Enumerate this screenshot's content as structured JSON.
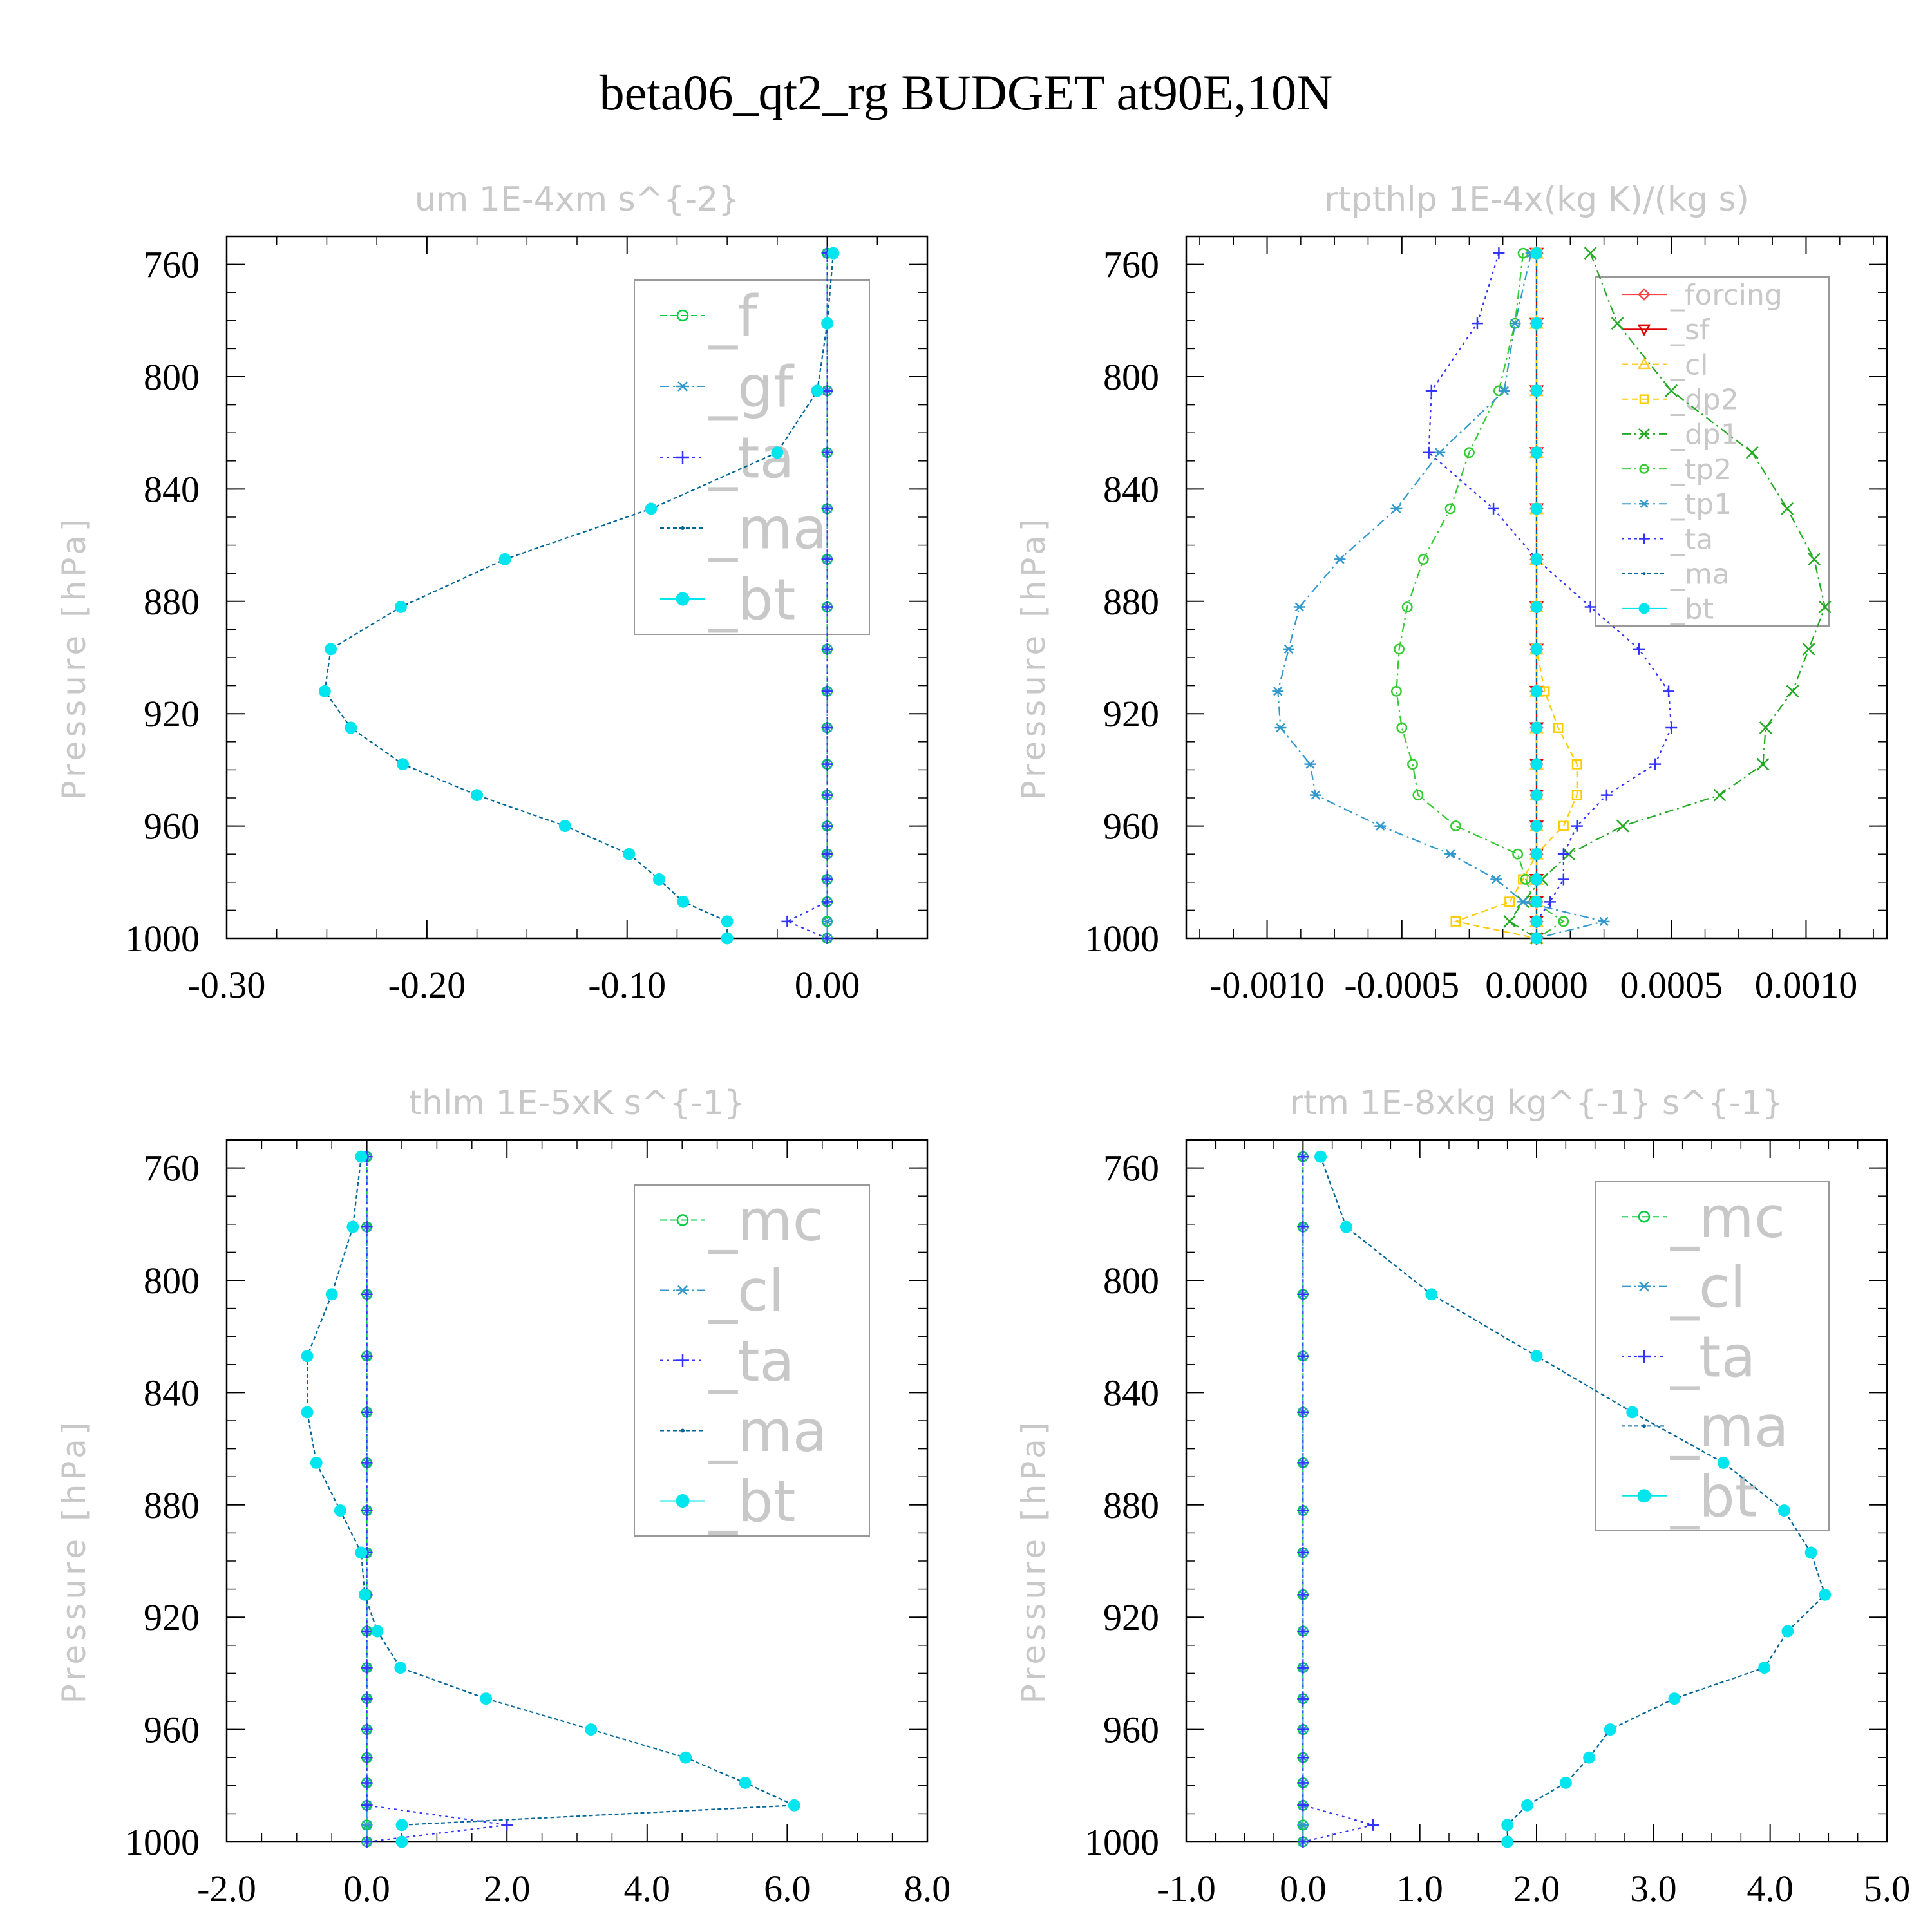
{
  "title": "beta06_qt2_rg  BUDGET at90E,10N",
  "chart_data": [
    {
      "type": "line",
      "title": "um  1E-4xm s^{-2}",
      "ylabel": "Pressure [hPa]",
      "xlim": [
        -0.3,
        0.05
      ],
      "ylim": [
        1000,
        750
      ],
      "xticks": [
        -0.3,
        -0.2,
        -0.1,
        0.0
      ],
      "xtick_labels": [
        "-0.30",
        "-0.20",
        "-0.10",
        "0.00"
      ],
      "yticks": [
        760,
        800,
        840,
        880,
        920,
        960,
        1000
      ],
      "ytick_labels": [
        "760",
        "800",
        "840",
        "880",
        "920",
        "960",
        "1000"
      ],
      "legend_position": "upper-right",
      "legend_font": 88,
      "levels": [
        756,
        781,
        805,
        827,
        847,
        865,
        882,
        897,
        912,
        925,
        938,
        949,
        960,
        970,
        979,
        987,
        994,
        1000
      ],
      "series": [
        {
          "name": "_f",
          "color": "#00cc44",
          "marker": "circle",
          "dash": "10,6",
          "values": [
            0.0,
            0.0,
            0.0,
            0.0,
            0.0,
            0.0,
            0.0,
            0.0,
            0.0,
            0.0,
            0.0,
            0.0,
            0.0,
            0.0,
            0.0,
            0.0,
            0.0,
            0.0
          ]
        },
        {
          "name": "_gf",
          "color": "#3399cc",
          "marker": "star",
          "dash": "14,6,3,6",
          "values": [
            0.0,
            0.0,
            0.0,
            0.0,
            0.0,
            0.0,
            0.0,
            0.0,
            0.0,
            0.0,
            0.0,
            0.0,
            0.0,
            0.0,
            0.0,
            0.0,
            0.0,
            0.0
          ]
        },
        {
          "name": "_ta",
          "color": "#3333ff",
          "marker": "plus",
          "dash": "4,6",
          "values": [
            0.0,
            0.0,
            0.0,
            0.0,
            0.0,
            0.0,
            0.0,
            0.0,
            0.0,
            0.0,
            0.0,
            0.0,
            0.0,
            0.0,
            0.0,
            0.0,
            -0.02,
            0.0
          ]
        },
        {
          "name": "_ma",
          "color": "#006699",
          "marker": "dot",
          "dash": "6,4",
          "values": [
            0.003,
            0.0,
            -0.005,
            -0.025,
            -0.088,
            -0.161,
            -0.213,
            -0.248,
            -0.251,
            -0.238,
            -0.212,
            -0.175,
            -0.131,
            -0.099,
            -0.084,
            -0.072,
            -0.05,
            -0.05
          ]
        },
        {
          "name": "_bt",
          "color": "#00e5ee",
          "marker": "filled",
          "dash": "",
          "values": [
            0.003,
            0.0,
            -0.005,
            -0.025,
            -0.088,
            -0.161,
            -0.213,
            -0.248,
            -0.251,
            -0.238,
            -0.212,
            -0.175,
            -0.131,
            -0.099,
            -0.084,
            -0.072,
            -0.05,
            -0.05
          ]
        }
      ]
    },
    {
      "type": "line",
      "title": "rtpthlp  1E-4x(kg K)/(kg s)",
      "ylabel": "Pressure [hPa]",
      "xlim": [
        -0.0013,
        0.0013
      ],
      "ylim": [
        1000,
        750
      ],
      "xticks": [
        -0.001,
        -0.0005,
        0.0,
        0.0005,
        0.001
      ],
      "xtick_labels": [
        "-0.0010",
        "-0.0005",
        "0.0000",
        "0.0005",
        "0.0010"
      ],
      "yticks": [
        760,
        800,
        840,
        880,
        920,
        960,
        1000
      ],
      "ytick_labels": [
        "760",
        "800",
        "840",
        "880",
        "920",
        "960",
        "1000"
      ],
      "legend_position": "upper-right",
      "legend_font": 44,
      "levels": [
        756,
        781,
        805,
        827,
        847,
        865,
        882,
        897,
        912,
        925,
        938,
        949,
        960,
        970,
        979,
        987,
        994,
        1000
      ],
      "series": [
        {
          "name": "_forcing",
          "color": "#ff4444",
          "marker": "diamond",
          "dash": "",
          "values": [
            0,
            0,
            0,
            0,
            0,
            0,
            0,
            0,
            0,
            0,
            0,
            0,
            0,
            0,
            0,
            0,
            0,
            0
          ]
        },
        {
          "name": "_sf",
          "color": "#dd0000",
          "marker": "triangle-down",
          "dash": "",
          "values": [
            0,
            0,
            0,
            0,
            0,
            0,
            0,
            0,
            0,
            0,
            0,
            0,
            0,
            0,
            0,
            0,
            0,
            0
          ]
        },
        {
          "name": "_cl",
          "color": "#ffcc33",
          "marker": "triangle-up",
          "dash": "10,6",
          "values": [
            0,
            0,
            0,
            0,
            0,
            0,
            0,
            0,
            0,
            0,
            0,
            0,
            0,
            0,
            0,
            0,
            0,
            0
          ]
        },
        {
          "name": "_dp2",
          "color": "#ffcc00",
          "marker": "square",
          "dash": "10,6",
          "values": [
            0,
            0,
            0,
            0,
            0,
            0,
            0,
            0,
            3e-05,
            8e-05,
            0.00015,
            0.00015,
            0.0001,
            0.0,
            -5e-05,
            -0.0001,
            -0.0003,
            0.0
          ]
        },
        {
          "name": "_dp1",
          "color": "#22aa22",
          "marker": "x",
          "dash": "14,6,3,6",
          "values": [
            0.0002,
            0.0003,
            0.0005,
            0.0008,
            0.00093,
            0.00103,
            0.00107,
            0.00101,
            0.00095,
            0.00085,
            0.00084,
            0.00068,
            0.00032,
            0.00012,
            2e-05,
            -5e-05,
            -0.0001,
            0.0
          ]
        },
        {
          "name": "_tp2",
          "color": "#33cc33",
          "marker": "circle",
          "dash": "14,6,3,6",
          "values": [
            -5e-05,
            -8e-05,
            -0.00014,
            -0.00025,
            -0.00032,
            -0.00042,
            -0.00048,
            -0.00051,
            -0.00052,
            -0.0005,
            -0.00046,
            -0.00044,
            -0.0003,
            -7e-05,
            -4e-05,
            -1e-05,
            0.0001,
            0.0
          ]
        },
        {
          "name": "_tp1",
          "color": "#3399cc",
          "marker": "star",
          "dash": "14,6,3,6",
          "values": [
            -2e-05,
            -8e-05,
            -0.00012,
            -0.00036,
            -0.00052,
            -0.00073,
            -0.00088,
            -0.00092,
            -0.00096,
            -0.00095,
            -0.00084,
            -0.00082,
            -0.00058,
            -0.00032,
            -0.00015,
            -5e-05,
            0.00025,
            0.0
          ]
        },
        {
          "name": "_ta",
          "color": "#3333ff",
          "marker": "plus",
          "dash": "4,6",
          "values": [
            -0.00014,
            -0.00022,
            -0.00039,
            -0.0004,
            -0.00016,
            0.0,
            0.0002,
            0.00038,
            0.00049,
            0.0005,
            0.00044,
            0.00026,
            0.00015,
            0.0001,
            0.0001,
            5e-05,
            0.0,
            0.0
          ]
        },
        {
          "name": "_ma",
          "color": "#006699",
          "marker": "dot",
          "dash": "6,4",
          "values": [
            0,
            0,
            0,
            0,
            0,
            0,
            0,
            0,
            0,
            0,
            0,
            0,
            0,
            0,
            0,
            0,
            0,
            0
          ]
        },
        {
          "name": "_bt",
          "color": "#00e5ee",
          "marker": "filled",
          "dash": "",
          "values": [
            0,
            0,
            0,
            0,
            0,
            0,
            0,
            0,
            0,
            0,
            0,
            0,
            0,
            0,
            0,
            0,
            0,
            0
          ]
        }
      ]
    },
    {
      "type": "line",
      "title": "thlm  1E-5xK s^{-1}",
      "ylabel": "Pressure [hPa]",
      "xlim": [
        -2.0,
        8.0
      ],
      "ylim": [
        1000,
        750
      ],
      "xticks": [
        -2,
        0,
        2,
        4,
        6,
        8
      ],
      "xtick_labels": [
        "-2.0",
        "0.0",
        "2.0",
        "4.0",
        "6.0",
        "8.0"
      ],
      "yticks": [
        760,
        800,
        840,
        880,
        920,
        960,
        1000
      ],
      "ytick_labels": [
        "760",
        "800",
        "840",
        "880",
        "920",
        "960",
        "1000"
      ],
      "legend_position": "upper-right",
      "legend_font": 88,
      "levels": [
        756,
        781,
        805,
        827,
        847,
        865,
        882,
        897,
        912,
        925,
        938,
        949,
        960,
        970,
        979,
        987,
        994,
        1000
      ],
      "series": [
        {
          "name": "_mc",
          "color": "#00cc44",
          "marker": "circle",
          "dash": "10,6",
          "values": [
            0,
            0,
            0,
            0,
            0,
            0,
            0,
            0,
            0,
            0,
            0,
            0,
            0,
            0,
            0,
            0,
            0,
            0
          ]
        },
        {
          "name": "_cl",
          "color": "#3399cc",
          "marker": "star",
          "dash": "14,6,3,6",
          "values": [
            0,
            0,
            0,
            0,
            0,
            0,
            0,
            0,
            0,
            0,
            0,
            0,
            0,
            0,
            0,
            0,
            0,
            0
          ]
        },
        {
          "name": "_ta",
          "color": "#3333ff",
          "marker": "plus",
          "dash": "4,6",
          "values": [
            0,
            0,
            0,
            0,
            0,
            0,
            0,
            0,
            0,
            0,
            0,
            0,
            0,
            0,
            0,
            0,
            2.0,
            0.0
          ]
        },
        {
          "name": "_ma",
          "color": "#006699",
          "marker": "dot",
          "dash": "6,4",
          "values": [
            -0.08,
            -0.2,
            -0.5,
            -0.85,
            -0.85,
            -0.72,
            -0.38,
            -0.08,
            -0.03,
            0.15,
            0.48,
            1.7,
            3.2,
            4.55,
            5.4,
            6.1,
            0.5,
            0.5
          ]
        },
        {
          "name": "_bt",
          "color": "#00e5ee",
          "marker": "filled",
          "dash": "",
          "values": [
            -0.08,
            -0.2,
            -0.5,
            -0.85,
            -0.85,
            -0.72,
            -0.38,
            -0.08,
            -0.03,
            0.15,
            0.48,
            1.7,
            3.2,
            4.55,
            5.4,
            6.1,
            0.5,
            0.5
          ]
        }
      ]
    },
    {
      "type": "line",
      "title": "rtm  1E-8xkg kg^{-1} s^{-1}",
      "ylabel": "Pressure [hPa]",
      "xlim": [
        -1.0,
        5.0
      ],
      "ylim": [
        1000,
        750
      ],
      "xticks": [
        -1,
        0,
        1,
        2,
        3,
        4,
        5
      ],
      "xtick_labels": [
        "-1.0",
        "0.0",
        "1.0",
        "2.0",
        "3.0",
        "4.0",
        "5.0"
      ],
      "yticks": [
        760,
        800,
        840,
        880,
        920,
        960,
        1000
      ],
      "ytick_labels": [
        "760",
        "800",
        "840",
        "880",
        "920",
        "960",
        "1000"
      ],
      "legend_position": "upper-right",
      "legend_font": 88,
      "levels": [
        756,
        781,
        805,
        827,
        847,
        865,
        882,
        897,
        912,
        925,
        938,
        949,
        960,
        970,
        979,
        987,
        994,
        1000
      ],
      "series": [
        {
          "name": "_mc",
          "color": "#00cc44",
          "marker": "circle",
          "dash": "10,6",
          "values": [
            0,
            0,
            0,
            0,
            0,
            0,
            0,
            0,
            0,
            0,
            0,
            0,
            0,
            0,
            0,
            0,
            0,
            0
          ]
        },
        {
          "name": "_cl",
          "color": "#3399cc",
          "marker": "star",
          "dash": "14,6,3,6",
          "values": [
            0,
            0,
            0,
            0,
            0,
            0,
            0,
            0,
            0,
            0,
            0,
            0,
            0,
            0,
            0,
            0,
            0,
            0
          ]
        },
        {
          "name": "_ta",
          "color": "#3333ff",
          "marker": "plus",
          "dash": "4,6",
          "values": [
            0,
            0,
            0,
            0,
            0,
            0,
            0,
            0,
            0,
            0,
            0,
            0,
            0,
            0,
            0,
            0,
            0.6,
            0.0
          ]
        },
        {
          "name": "_ma",
          "color": "#006699",
          "marker": "dot",
          "dash": "6,4",
          "values": [
            0.15,
            0.37,
            1.1,
            2.0,
            2.82,
            3.6,
            4.12,
            4.35,
            4.47,
            4.15,
            3.95,
            3.18,
            2.63,
            2.45,
            2.25,
            1.92,
            1.75,
            1.75
          ]
        },
        {
          "name": "_bt",
          "color": "#00e5ee",
          "marker": "filled",
          "dash": "",
          "values": [
            0.15,
            0.37,
            1.1,
            2.0,
            2.82,
            3.6,
            4.12,
            4.35,
            4.47,
            4.15,
            3.95,
            3.18,
            2.63,
            2.45,
            2.25,
            1.92,
            1.75,
            1.75
          ]
        }
      ]
    }
  ]
}
